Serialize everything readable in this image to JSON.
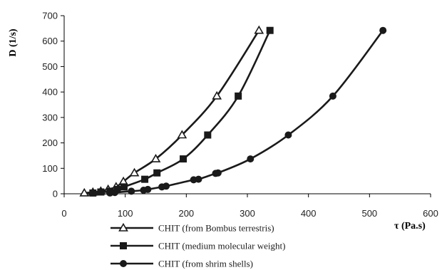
{
  "chart_data": {
    "type": "line",
    "xlabel": "τ (Pa.s)",
    "ylabel": "D (1/s)",
    "xlim": [
      0,
      600
    ],
    "ylim": [
      0,
      700
    ],
    "x_ticks": [
      0,
      100,
      200,
      300,
      400,
      500,
      600
    ],
    "y_ticks": [
      0,
      100,
      200,
      300,
      400,
      500,
      600,
      700
    ],
    "grid": false,
    "legend_position": "bottom",
    "series": [
      {
        "name": "CHIT (from Bombus terrestris)",
        "marker": "triangle",
        "x": [
          33,
          47,
          60,
          72,
          85,
          97,
          115,
          150,
          193,
          250,
          319
        ],
        "y": [
          3,
          6,
          10,
          17,
          27,
          48,
          82,
          137,
          231,
          384,
          642
        ]
      },
      {
        "name": "CHIT (medium molecular weight)",
        "marker": "square",
        "x": [
          47,
          60,
          75,
          87,
          98,
          132,
          152,
          195,
          235,
          285,
          337
        ],
        "y": [
          3,
          7,
          10,
          17,
          27,
          57,
          82,
          137,
          231,
          384,
          642
        ]
      },
      {
        "name": "CHIT (from shrim shells)",
        "marker": "circle",
        "x": [
          75,
          83,
          110,
          130,
          137,
          160,
          167,
          212,
          220,
          248,
          252,
          305,
          367,
          440,
          522
        ],
        "y": [
          3,
          5,
          10,
          14,
          17,
          27,
          30,
          55,
          57,
          80,
          82,
          137,
          231,
          384,
          642
        ]
      }
    ]
  }
}
